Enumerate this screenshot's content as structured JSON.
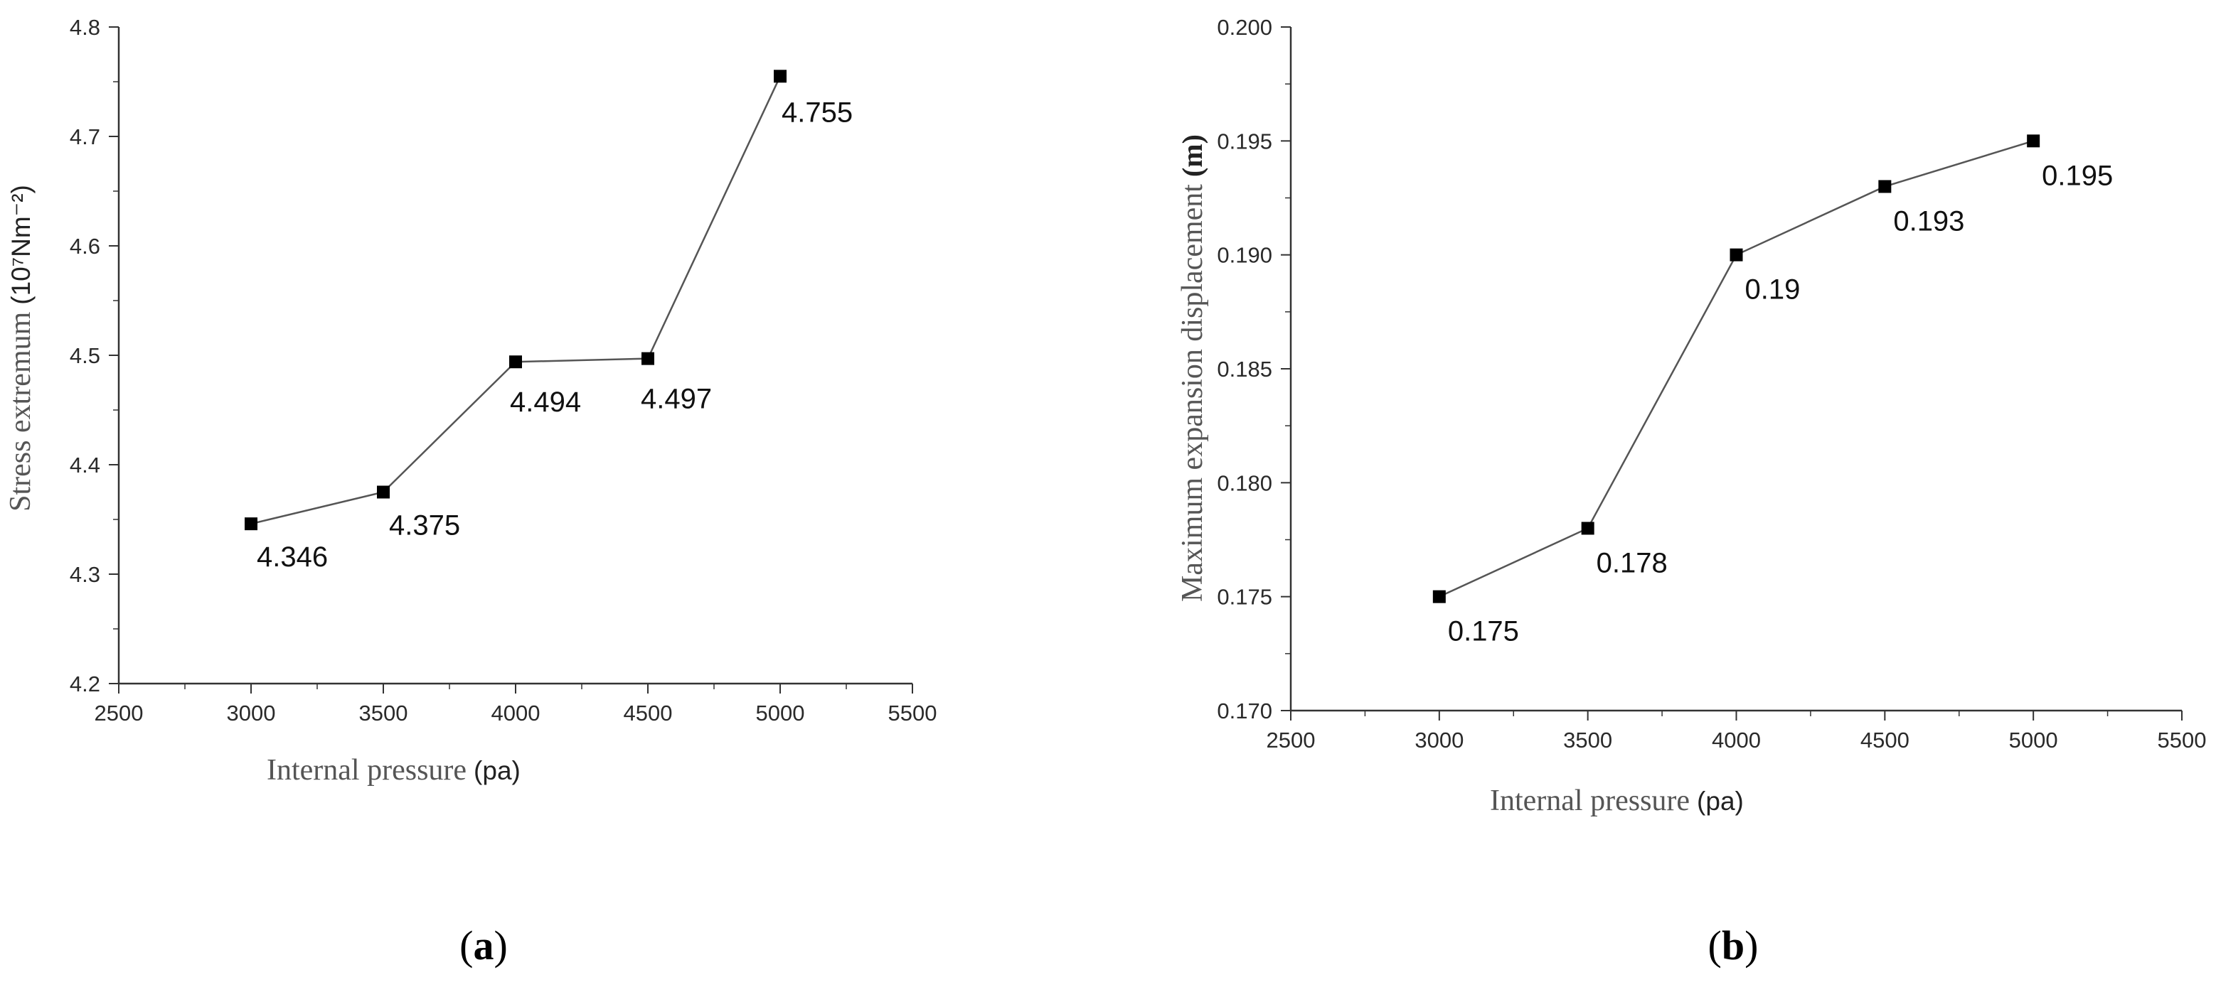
{
  "chart_data": [
    {
      "type": "line",
      "panel_label": "a",
      "xlabel": "Internal pressure",
      "xunit": "(pa)",
      "ylabel": "Stress extremum",
      "yunit": "(10⁷Nm⁻²)",
      "xlim": [
        2500,
        5500
      ],
      "ylim": [
        4.2,
        4.8
      ],
      "xticks": [
        2500,
        3000,
        3500,
        4000,
        4500,
        5000,
        5500
      ],
      "yticks": [
        "4.2",
        "4.3",
        "4.4",
        "4.5",
        "4.6",
        "4.7",
        "4.8"
      ],
      "x": [
        3000,
        3500,
        4000,
        4500,
        5000
      ],
      "y": [
        4.346,
        4.375,
        4.494,
        4.497,
        4.755
      ],
      "point_labels": [
        "4.346",
        "4.375",
        "4.494",
        "4.497",
        "4.755"
      ],
      "grid": false
    },
    {
      "type": "line",
      "panel_label": "b",
      "xlabel": "Internal pressure",
      "xunit": "(pa)",
      "ylabel": "Maximum expansion displacement",
      "yunit": "(m)",
      "xlim": [
        2500,
        5500
      ],
      "ylim": [
        0.17,
        0.2
      ],
      "xticks": [
        2500,
        3000,
        3500,
        4000,
        4500,
        5000,
        5500
      ],
      "yticks": [
        "0.170",
        "0.175",
        "0.180",
        "0.185",
        "0.190",
        "0.195",
        "0.200"
      ],
      "x": [
        3000,
        3500,
        4000,
        4500,
        5000
      ],
      "y": [
        0.175,
        0.178,
        0.19,
        0.193,
        0.195
      ],
      "point_labels": [
        "0.175",
        "0.178",
        "0.19",
        "0.193",
        "0.195"
      ],
      "grid": false
    }
  ],
  "colors": {
    "line": "#555555",
    "marker": "#000000",
    "axis": "#333333"
  }
}
